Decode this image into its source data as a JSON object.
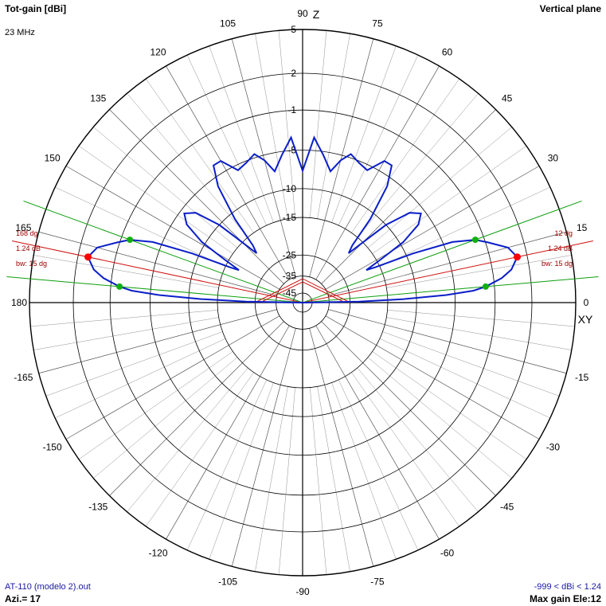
{
  "header": {
    "title": "Tot-gain [dBi]",
    "frequency": "23 MHz",
    "plane": "Vertical plane"
  },
  "footer": {
    "file": "AT-110 (modelo 2).out",
    "azimuth": "Azi.= 17",
    "range": "-999 < dBi < 1.24",
    "max_gain": "Max gain Ele:12"
  },
  "colors": {
    "pattern": "#0a1ec8",
    "beam_line": "#d01010",
    "beamwidth_line": "#10a010",
    "max_marker": "#ff0000",
    "half_power_marker": "#10b010",
    "grid": "#000000",
    "minor_grid": "#909090",
    "right_annot": "#a00000"
  },
  "chart_data": {
    "type": "polar",
    "axis_labels": {
      "top": "Z",
      "right": "XY"
    },
    "angle_labels": [
      {
        "deg": 0,
        "text": "0"
      },
      {
        "deg": 15,
        "text": "15"
      },
      {
        "deg": 30,
        "text": "30"
      },
      {
        "deg": 45,
        "text": "45"
      },
      {
        "deg": 60,
        "text": "60"
      },
      {
        "deg": 75,
        "text": "75"
      },
      {
        "deg": 90,
        "text": "90"
      },
      {
        "deg": 105,
        "text": "105"
      },
      {
        "deg": 120,
        "text": "120"
      },
      {
        "deg": 135,
        "text": "135"
      },
      {
        "deg": 150,
        "text": "150"
      },
      {
        "deg": 165,
        "text": "165"
      },
      {
        "deg": 180,
        "text": "180"
      },
      {
        "deg": -15,
        "text": "-15"
      },
      {
        "deg": -30,
        "text": "-30"
      },
      {
        "deg": -45,
        "text": "-45"
      },
      {
        "deg": -60,
        "text": "-60"
      },
      {
        "deg": -75,
        "text": "-75"
      },
      {
        "deg": -90,
        "text": "-90"
      },
      {
        "deg": -105,
        "text": "-105"
      },
      {
        "deg": -120,
        "text": "-120"
      },
      {
        "deg": -135,
        "text": "-135"
      },
      {
        "deg": -150,
        "text": "-150"
      },
      {
        "deg": -165,
        "text": "-165"
      }
    ],
    "rings_db": [
      5,
      2,
      -1,
      -5,
      -10,
      -15,
      -25,
      -35,
      -45
    ],
    "ring_labels": [
      "5",
      "2",
      "-1",
      "-5",
      "-10",
      "-15",
      "-25",
      "-35",
      "-45"
    ],
    "max_gain_dbi": 1.24,
    "max_gain_elevation_deg": 12,
    "beamwidth_deg": 15,
    "half_power_elevations_deg": [
      5,
      20
    ],
    "annotations_right": [
      "12 dg",
      "1.24 dB",
      "bw: 15 dg"
    ],
    "annotations_left": [
      "168 dg",
      "1.24 dB",
      "bw: 15 dg"
    ],
    "pattern": [
      {
        "elev": 0,
        "gain": -45
      },
      {
        "elev": 1,
        "gain": -22
      },
      {
        "elev": 2,
        "gain": -12
      },
      {
        "elev": 3,
        "gain": -6
      },
      {
        "elev": 4,
        "gain": -3
      },
      {
        "elev": 5,
        "gain": -1.8
      },
      {
        "elev": 7,
        "gain": -0.3
      },
      {
        "elev": 9,
        "gain": 0.6
      },
      {
        "elev": 12,
        "gain": 1.24
      },
      {
        "elev": 15,
        "gain": 0.7
      },
      {
        "elev": 18,
        "gain": -0.8
      },
      {
        "elev": 20,
        "gain": -1.8
      },
      {
        "elev": 22,
        "gain": -4
      },
      {
        "elev": 24,
        "gain": -9
      },
      {
        "elev": 26,
        "gain": -16
      },
      {
        "elev": 27,
        "gain": -18
      },
      {
        "elev": 29,
        "gain": -14
      },
      {
        "elev": 31,
        "gain": -9.5
      },
      {
        "elev": 34,
        "gain": -6.5
      },
      {
        "elev": 37,
        "gain": -5.5
      },
      {
        "elev": 40,
        "gain": -6.5
      },
      {
        "elev": 43,
        "gain": -10
      },
      {
        "elev": 45,
        "gain": -15
      },
      {
        "elev": 47,
        "gain": -19
      },
      {
        "elev": 49,
        "gain": -17
      },
      {
        "elev": 51,
        "gain": -11
      },
      {
        "elev": 54,
        "gain": -6
      },
      {
        "elev": 57,
        "gain": -3.8
      },
      {
        "elev": 60,
        "gain": -3.8
      },
      {
        "elev": 64,
        "gain": -5.6
      },
      {
        "elev": 68,
        "gain": -5.2
      },
      {
        "elev": 72,
        "gain": -4.6
      },
      {
        "elev": 75,
        "gain": -5.6
      },
      {
        "elev": 78,
        "gain": -7.2
      },
      {
        "elev": 82,
        "gain": -5.4
      },
      {
        "elev": 86,
        "gain": -3.6
      },
      {
        "elev": 90,
        "gain": -7.5
      }
    ]
  }
}
